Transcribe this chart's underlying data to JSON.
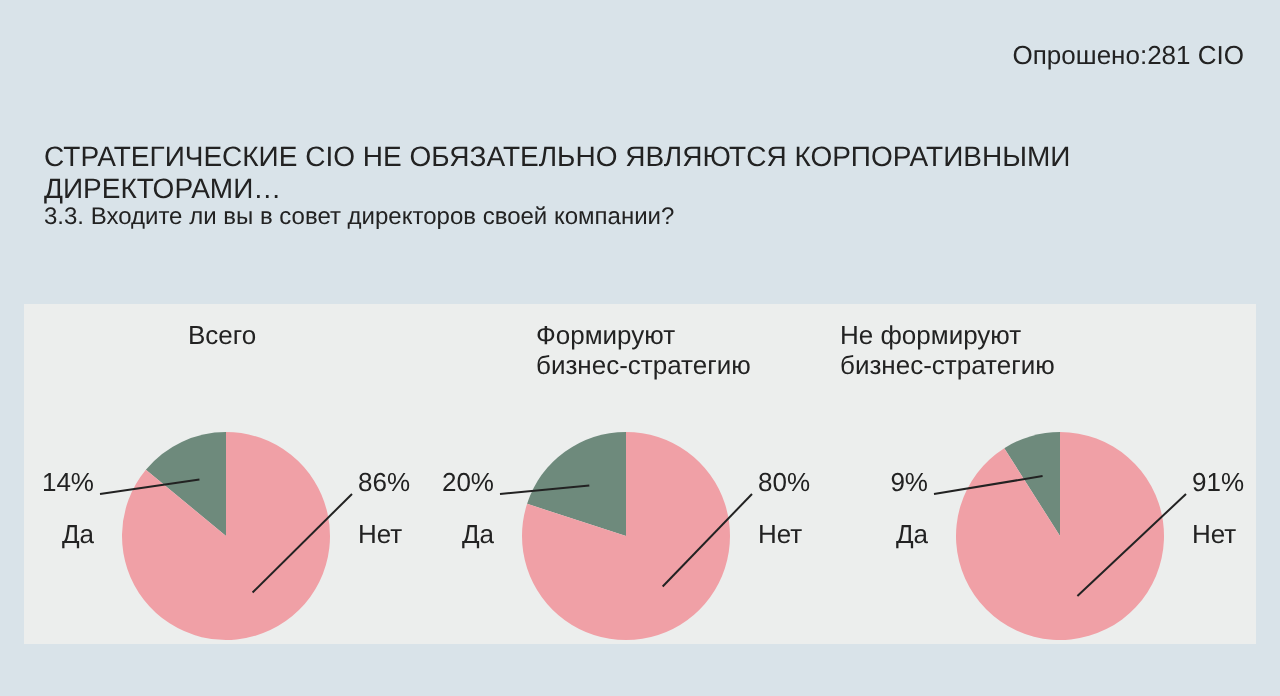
{
  "chart_data": [
    {
      "type": "other",
      "title": "СТРАТЕГИЧЕСКИЕ CIO НЕ ОБЯЗАТЕЛЬНО ЯВЛЯЮТСЯ КОРПОРАТИВНЫМИ ДИРЕКТОРАМИ…",
      "subtitle": "3.3. Входите ли вы в совет директоров своей компании?",
      "annotations": [
        "Опрошено:281 CIO"
      ]
    },
    {
      "type": "pie",
      "title": "Всего",
      "categories": [
        "Да",
        "Нет"
      ],
      "values": [
        14,
        86
      ],
      "colors": [
        "#6e8a7c",
        "#f0a0a6"
      ],
      "value_labels": [
        "14%",
        "86%"
      ],
      "legend": false
    },
    {
      "type": "pie",
      "title": "Формируют\nбизнес-стратегию",
      "categories": [
        "Да",
        "Нет"
      ],
      "values": [
        20,
        80
      ],
      "colors": [
        "#6e8a7c",
        "#f0a0a6"
      ],
      "value_labels": [
        "20%",
        "80%"
      ],
      "legend": false
    },
    {
      "type": "pie",
      "title": "Не формируют\nбизнес-стратегию",
      "categories": [
        "Да",
        "Нет"
      ],
      "values": [
        9,
        91
      ],
      "colors": [
        "#6e8a7c",
        "#f0a0a6"
      ],
      "value_labels": [
        "9%",
        "91%"
      ],
      "legend": false
    }
  ]
}
